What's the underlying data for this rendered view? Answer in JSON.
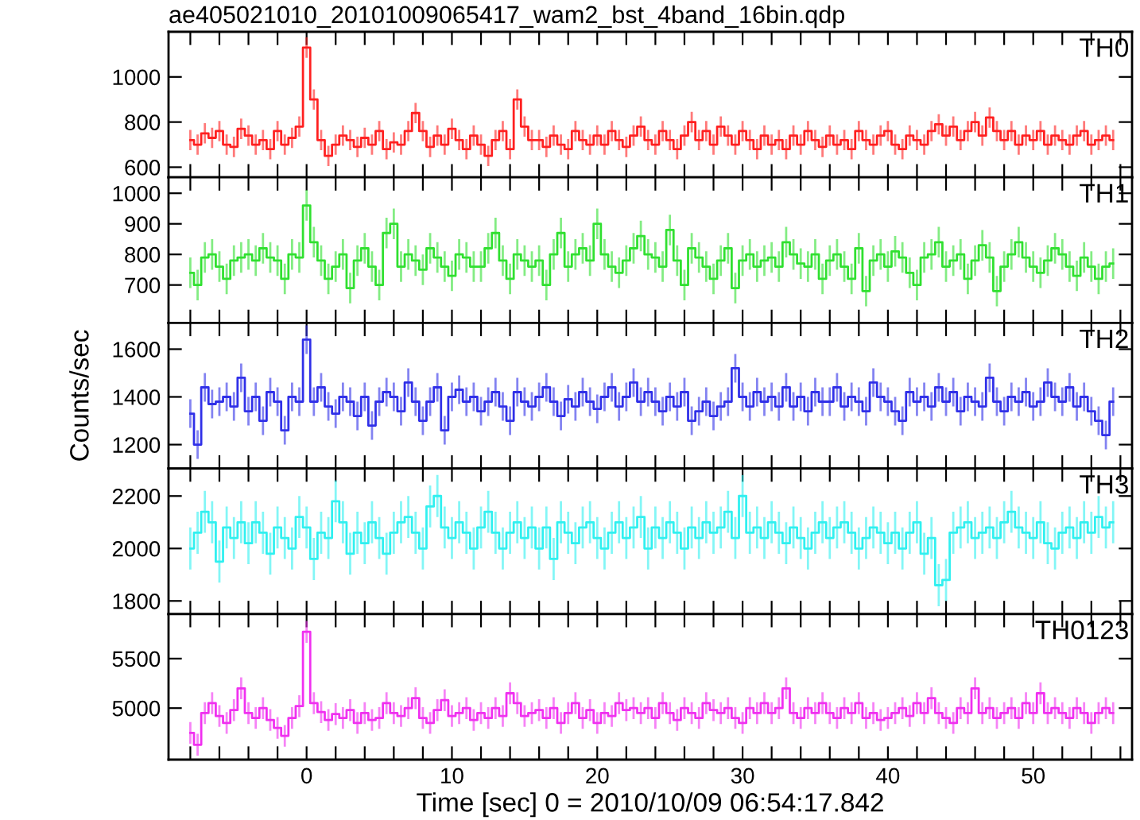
{
  "chart_data": [
    {
      "type": "step",
      "title": "ae405021010_20101009065417_wam2_bst_4band_16bin.qdp",
      "annotations": [
        "TH0"
      ],
      "tick_labels": "y",
      "xlim": [
        -9.5,
        56.8
      ],
      "ylim": [
        555,
        1200
      ],
      "yticks": [
        600,
        800,
        1000
      ],
      "x": [
        -8,
        -7.5,
        -7,
        -6.5,
        -6,
        -5.5,
        -5,
        -4.5,
        -4,
        -3.5,
        -3,
        -2.5,
        -2,
        -1.5,
        -1,
        -0.5,
        0,
        0.5,
        1,
        1.5,
        2,
        2.5,
        3,
        3.5,
        4,
        4.5,
        5,
        5.5,
        6,
        6.5,
        7,
        7.5,
        8,
        8.5,
        9,
        9.5,
        10,
        10.5,
        11,
        11.5,
        12,
        12.5,
        13,
        13.5,
        14,
        14.5,
        15,
        15.5,
        16,
        16.5,
        17,
        17.5,
        18,
        18.5,
        19,
        19.5,
        20,
        20.5,
        21,
        21.5,
        22,
        22.5,
        23,
        23.5,
        24,
        24.5,
        25,
        25.5,
        26,
        26.5,
        27,
        27.5,
        28,
        28.5,
        29,
        29.5,
        30,
        30.5,
        31,
        31.5,
        32,
        32.5,
        33,
        33.5,
        34,
        34.5,
        35,
        35.5,
        36,
        36.5,
        37,
        37.5,
        38,
        38.5,
        39,
        39.5,
        40,
        40.5,
        41,
        41.5,
        42,
        42.5,
        43,
        43.5,
        44,
        44.5,
        45,
        45.5,
        46,
        46.5,
        47,
        47.5,
        48,
        48.5,
        49,
        49.5,
        50,
        50.5,
        51,
        51.5,
        52,
        52.5,
        53,
        53.5,
        54,
        54.5,
        55,
        55.5
      ],
      "series": [
        {
          "color": "#ff2020",
          "values": [
            720,
            700,
            750,
            730,
            760,
            700,
            690,
            770,
            740,
            700,
            720,
            680,
            760,
            700,
            730,
            780,
            1130,
            900,
            720,
            650,
            700,
            740,
            720,
            690,
            730,
            700,
            760,
            680,
            710,
            700,
            760,
            840,
            760,
            690,
            740,
            700,
            770,
            720,
            680,
            740,
            700,
            650,
            720,
            760,
            680,
            900,
            780,
            720,
            720,
            690,
            740,
            700,
            680,
            760,
            720,
            700,
            740,
            700,
            760,
            720,
            690,
            740,
            780,
            720,
            700,
            760,
            720,
            680,
            740,
            800,
            720,
            760,
            700,
            780,
            740,
            700,
            760,
            720,
            680,
            740,
            700,
            720,
            680,
            740,
            700,
            760,
            720,
            690,
            740,
            700,
            720,
            680,
            760,
            720,
            700,
            740,
            760,
            700,
            680,
            740,
            720,
            700,
            760,
            790,
            740,
            780,
            720,
            760,
            800,
            740,
            820,
            760,
            720,
            760,
            700,
            740,
            720,
            760,
            700,
            740,
            720,
            700,
            740,
            760,
            700,
            720,
            740,
            720
          ],
          "errors": [
            45,
            45,
            45,
            45,
            45,
            45,
            45,
            45,
            45,
            45,
            45,
            45,
            45,
            45,
            45,
            45,
            45,
            45,
            45,
            45,
            45,
            45,
            45,
            45,
            45,
            45,
            45,
            45,
            45,
            45,
            45,
            45,
            45,
            45,
            45,
            45,
            45,
            45,
            45,
            45,
            45,
            45,
            45,
            45,
            45,
            45,
            45,
            45,
            45,
            45,
            45,
            45,
            45,
            45,
            45,
            45,
            45,
            45,
            45,
            45,
            45,
            45,
            45,
            45,
            45,
            45,
            45,
            45,
            45,
            45,
            45,
            45,
            45,
            45,
            45,
            45,
            45,
            45,
            45,
            45,
            45,
            45,
            45,
            45,
            45,
            45,
            45,
            45,
            45,
            45,
            45,
            45,
            45,
            45,
            45,
            45,
            45,
            45,
            45,
            45,
            45,
            45,
            45,
            45,
            45,
            45,
            45,
            45,
            45,
            45,
            45,
            45,
            45,
            45,
            45,
            45,
            45,
            45,
            45,
            45,
            45,
            45,
            45,
            45,
            45,
            45,
            45,
            45
          ]
        }
      ]
    },
    {
      "type": "step",
      "annotations": [
        "TH1"
      ],
      "tick_labels": "y",
      "xlim": [
        -9.5,
        56.8
      ],
      "ylim": [
        576,
        1052
      ],
      "yticks": [
        700,
        800,
        900,
        1000
      ],
      "x": [
        -8,
        -7.5,
        -7,
        -6.5,
        -6,
        -5.5,
        -5,
        -4.5,
        -4,
        -3.5,
        -3,
        -2.5,
        -2,
        -1.5,
        -1,
        -0.5,
        0,
        0.5,
        1,
        1.5,
        2,
        2.5,
        3,
        3.5,
        4,
        4.5,
        5,
        5.5,
        6,
        6.5,
        7,
        7.5,
        8,
        8.5,
        9,
        9.5,
        10,
        10.5,
        11,
        11.5,
        12,
        12.5,
        13,
        13.5,
        14,
        14.5,
        15,
        15.5,
        16,
        16.5,
        17,
        17.5,
        18,
        18.5,
        19,
        19.5,
        20,
        20.5,
        21,
        21.5,
        22,
        22.5,
        23,
        23.5,
        24,
        24.5,
        25,
        25.5,
        26,
        26.5,
        27,
        27.5,
        28,
        28.5,
        29,
        29.5,
        30,
        30.5,
        31,
        31.5,
        32,
        32.5,
        33,
        33.5,
        34,
        34.5,
        35,
        35.5,
        36,
        36.5,
        37,
        37.5,
        38,
        38.5,
        39,
        39.5,
        40,
        40.5,
        41,
        41.5,
        42,
        42.5,
        43,
        43.5,
        44,
        44.5,
        45,
        45.5,
        46,
        46.5,
        47,
        47.5,
        48,
        48.5,
        49,
        49.5,
        50,
        50.5,
        51,
        51.5,
        52,
        52.5,
        53,
        53.5,
        54,
        54.5,
        55,
        55.5
      ],
      "series": [
        {
          "color": "#30e030",
          "values": [
            740,
            700,
            790,
            800,
            760,
            720,
            780,
            790,
            800,
            780,
            820,
            790,
            780,
            720,
            800,
            790,
            960,
            840,
            780,
            720,
            760,
            800,
            690,
            780,
            820,
            760,
            700,
            870,
            900,
            760,
            800,
            780,
            750,
            820,
            790,
            760,
            730,
            800,
            790,
            760,
            760,
            820,
            870,
            780,
            720,
            800,
            780,
            760,
            780,
            700,
            800,
            870,
            760,
            800,
            820,
            780,
            900,
            800,
            760,
            740,
            780,
            820,
            860,
            800,
            790,
            760,
            880,
            780,
            700,
            820,
            790,
            760,
            720,
            780,
            820,
            690,
            780,
            800,
            760,
            780,
            790,
            760,
            840,
            800,
            770,
            760,
            800,
            720,
            780,
            800,
            760,
            720,
            820,
            680,
            780,
            800,
            760,
            810,
            790,
            740,
            700,
            790,
            800,
            840,
            760,
            780,
            800,
            720,
            780,
            830,
            790,
            680,
            760,
            800,
            840,
            790,
            760,
            740,
            780,
            820,
            800,
            760,
            730,
            790,
            760,
            720,
            760,
            770
          ],
          "errors": [
            50,
            50,
            50,
            50,
            50,
            50,
            50,
            50,
            50,
            50,
            50,
            50,
            50,
            50,
            50,
            50,
            50,
            50,
            50,
            50,
            50,
            50,
            50,
            50,
            50,
            50,
            50,
            50,
            50,
            50,
            50,
            50,
            50,
            50,
            50,
            50,
            50,
            50,
            50,
            50,
            50,
            50,
            50,
            50,
            50,
            50,
            50,
            50,
            50,
            50,
            50,
            50,
            50,
            50,
            50,
            50,
            50,
            50,
            50,
            50,
            50,
            50,
            50,
            50,
            50,
            50,
            50,
            50,
            50,
            50,
            50,
            50,
            50,
            50,
            50,
            50,
            50,
            50,
            50,
            50,
            50,
            50,
            50,
            50,
            50,
            50,
            50,
            50,
            50,
            50,
            50,
            50,
            50,
            50,
            50,
            50,
            50,
            50,
            50,
            50,
            50,
            50,
            50,
            50,
            50,
            50,
            50,
            50,
            50,
            50,
            50,
            50,
            50,
            50,
            50,
            50,
            50,
            50,
            50,
            50,
            50,
            50,
            50,
            50,
            50,
            50,
            50,
            50
          ]
        }
      ]
    },
    {
      "type": "step",
      "annotations": [
        "TH2"
      ],
      "ylabel": "Counts/sec",
      "tick_labels": "y",
      "xlim": [
        -9.5,
        56.8
      ],
      "ylim": [
        1100,
        1710
      ],
      "yticks": [
        1200,
        1400,
        1600
      ],
      "x": [
        -8,
        -7.5,
        -7,
        -6.5,
        -6,
        -5.5,
        -5,
        -4.5,
        -4,
        -3.5,
        -3,
        -2.5,
        -2,
        -1.5,
        -1,
        -0.5,
        0,
        0.5,
        1,
        1.5,
        2,
        2.5,
        3,
        3.5,
        4,
        4.5,
        5,
        5.5,
        6,
        6.5,
        7,
        7.5,
        8,
        8.5,
        9,
        9.5,
        10,
        10.5,
        11,
        11.5,
        12,
        12.5,
        13,
        13.5,
        14,
        14.5,
        15,
        15.5,
        16,
        16.5,
        17,
        17.5,
        18,
        18.5,
        19,
        19.5,
        20,
        20.5,
        21,
        21.5,
        22,
        22.5,
        23,
        23.5,
        24,
        24.5,
        25,
        25.5,
        26,
        26.5,
        27,
        27.5,
        28,
        28.5,
        29,
        29.5,
        30,
        30.5,
        31,
        31.5,
        32,
        32.5,
        33,
        33.5,
        34,
        34.5,
        35,
        35.5,
        36,
        36.5,
        37,
        37.5,
        38,
        38.5,
        39,
        39.5,
        40,
        40.5,
        41,
        41.5,
        42,
        42.5,
        43,
        43.5,
        44,
        44.5,
        45,
        45.5,
        46,
        46.5,
        47,
        47.5,
        48,
        48.5,
        49,
        49.5,
        50,
        50.5,
        51,
        51.5,
        52,
        52.5,
        53,
        53.5,
        54,
        54.5,
        55,
        55.5
      ],
      "series": [
        {
          "color": "#3030e8",
          "values": [
            1330,
            1200,
            1440,
            1370,
            1380,
            1400,
            1360,
            1480,
            1340,
            1400,
            1300,
            1420,
            1380,
            1260,
            1400,
            1380,
            1640,
            1380,
            1440,
            1360,
            1330,
            1400,
            1380,
            1320,
            1400,
            1280,
            1380,
            1420,
            1400,
            1340,
            1460,
            1380,
            1300,
            1380,
            1440,
            1260,
            1400,
            1430,
            1380,
            1400,
            1340,
            1380,
            1420,
            1360,
            1300,
            1420,
            1380,
            1360,
            1400,
            1440,
            1380,
            1320,
            1390,
            1360,
            1420,
            1380,
            1350,
            1400,
            1440,
            1360,
            1400,
            1460,
            1380,
            1420,
            1380,
            1340,
            1400,
            1360,
            1420,
            1300,
            1340,
            1380,
            1320,
            1360,
            1380,
            1520,
            1400,
            1360,
            1420,
            1380,
            1400,
            1360,
            1440,
            1360,
            1400,
            1340,
            1420,
            1380,
            1380,
            1440,
            1360,
            1400,
            1380,
            1340,
            1460,
            1400,
            1380,
            1340,
            1300,
            1420,
            1380,
            1400,
            1360,
            1440,
            1380,
            1420,
            1340,
            1400,
            1380,
            1360,
            1480,
            1380,
            1340,
            1400,
            1380,
            1420,
            1360,
            1380,
            1460,
            1400,
            1380,
            1440,
            1360,
            1400,
            1340,
            1300,
            1240,
            1380
          ],
          "errors": [
            60,
            60,
            60,
            60,
            60,
            60,
            60,
            60,
            60,
            60,
            60,
            60,
            60,
            60,
            60,
            60,
            60,
            60,
            60,
            60,
            60,
            60,
            60,
            60,
            60,
            60,
            60,
            60,
            60,
            60,
            60,
            60,
            60,
            60,
            60,
            60,
            60,
            60,
            60,
            60,
            60,
            60,
            60,
            60,
            60,
            60,
            60,
            60,
            60,
            60,
            60,
            60,
            60,
            60,
            60,
            60,
            60,
            60,
            60,
            60,
            60,
            60,
            60,
            60,
            60,
            60,
            60,
            60,
            60,
            60,
            60,
            60,
            60,
            60,
            60,
            60,
            60,
            60,
            60,
            60,
            60,
            60,
            60,
            60,
            60,
            60,
            60,
            60,
            60,
            60,
            60,
            60,
            60,
            60,
            60,
            60,
            60,
            60,
            60,
            60,
            60,
            60,
            60,
            60,
            60,
            60,
            60,
            60,
            60,
            60,
            60,
            60,
            60,
            60,
            60,
            60,
            60,
            60,
            60,
            60,
            60,
            60,
            60,
            60,
            60,
            60,
            60,
            60
          ]
        }
      ]
    },
    {
      "type": "step",
      "annotations": [
        "TH3"
      ],
      "tick_labels": "y",
      "xlim": [
        -9.5,
        56.8
      ],
      "ylim": [
        1750,
        2305
      ],
      "yticks": [
        1800,
        2000,
        2200
      ],
      "x": [
        -8,
        -7.5,
        -7,
        -6.5,
        -6,
        -5.5,
        -5,
        -4.5,
        -4,
        -3.5,
        -3,
        -2.5,
        -2,
        -1.5,
        -1,
        -0.5,
        0,
        0.5,
        1,
        1.5,
        2,
        2.5,
        3,
        3.5,
        4,
        4.5,
        5,
        5.5,
        6,
        6.5,
        7,
        7.5,
        8,
        8.5,
        9,
        9.5,
        10,
        10.5,
        11,
        11.5,
        12,
        12.5,
        13,
        13.5,
        14,
        14.5,
        15,
        15.5,
        16,
        16.5,
        17,
        17.5,
        18,
        18.5,
        19,
        19.5,
        20,
        20.5,
        21,
        21.5,
        22,
        22.5,
        23,
        23.5,
        24,
        24.5,
        25,
        25.5,
        26,
        26.5,
        27,
        27.5,
        28,
        28.5,
        29,
        29.5,
        30,
        30.5,
        31,
        31.5,
        32,
        32.5,
        33,
        33.5,
        34,
        34.5,
        35,
        35.5,
        36,
        36.5,
        37,
        37.5,
        38,
        38.5,
        39,
        39.5,
        40,
        40.5,
        41,
        41.5,
        42,
        42.5,
        43,
        43.5,
        44,
        44.5,
        45,
        45.5,
        46,
        46.5,
        47,
        47.5,
        48,
        48.5,
        49,
        49.5,
        50,
        50.5,
        51,
        51.5,
        52,
        52.5,
        53,
        53.5,
        54,
        54.5,
        55,
        55.5
      ],
      "series": [
        {
          "color": "#30f0f0",
          "values": [
            2000,
            2060,
            2140,
            2100,
            1950,
            2080,
            2040,
            2100,
            2020,
            2100,
            2060,
            1980,
            2080,
            2040,
            2000,
            2120,
            2080,
            1960,
            2060,
            2040,
            2180,
            2100,
            1980,
            2060,
            2020,
            2100,
            2040,
            1980,
            2060,
            2100,
            2120,
            2060,
            2000,
            2160,
            2200,
            2080,
            2040,
            2100,
            2060,
            2000,
            2080,
            2140,
            2060,
            2000,
            2060,
            2100,
            2040,
            2080,
            2000,
            2080,
            1960,
            2100,
            2060,
            2020,
            2080,
            2100,
            2040,
            2000,
            2060,
            2100,
            2040,
            2080,
            2120,
            2000,
            2080,
            2040,
            2100,
            2060,
            2000,
            2080,
            2040,
            2100,
            2060,
            2080,
            2140,
            2040,
            2200,
            2060,
            2080,
            2040,
            2100,
            2060,
            2020,
            2080,
            2040,
            2000,
            2060,
            2100,
            2040,
            2080,
            2100,
            2060,
            2000,
            2040,
            2080,
            2060,
            2020,
            2060,
            2000,
            2060,
            2100,
            1980,
            2040,
            1860,
            1880,
            2060,
            2080,
            2100,
            2040,
            2060,
            2080,
            2040,
            2100,
            2140,
            2080,
            2060,
            2040,
            2100,
            2020,
            2000,
            2060,
            2080,
            2040,
            2100,
            2060,
            2120,
            2080,
            2100
          ],
          "errors": [
            80,
            80,
            80,
            80,
            80,
            80,
            80,
            80,
            80,
            80,
            80,
            80,
            80,
            80,
            80,
            80,
            80,
            80,
            80,
            80,
            80,
            80,
            80,
            80,
            80,
            80,
            80,
            80,
            80,
            80,
            80,
            80,
            80,
            80,
            80,
            80,
            80,
            80,
            80,
            80,
            80,
            80,
            80,
            80,
            80,
            80,
            80,
            80,
            80,
            80,
            80,
            80,
            80,
            80,
            80,
            80,
            80,
            80,
            80,
            80,
            80,
            80,
            80,
            80,
            80,
            80,
            80,
            80,
            80,
            80,
            80,
            80,
            80,
            80,
            80,
            80,
            80,
            80,
            80,
            80,
            80,
            80,
            80,
            80,
            80,
            80,
            80,
            80,
            80,
            80,
            80,
            80,
            80,
            80,
            80,
            80,
            80,
            80,
            80,
            80,
            80,
            80,
            80,
            80,
            80,
            80,
            80,
            80,
            80,
            80,
            80,
            80,
            80,
            80,
            80,
            80,
            80,
            80,
            80,
            80,
            80,
            80,
            80,
            80,
            80,
            80,
            80,
            80
          ]
        }
      ]
    },
    {
      "type": "step",
      "annotations": [
        "TH0123"
      ],
      "xlabel": "Time [sec] 0 = 2010/10/09 06:54:17.842",
      "xlim": [
        -9.5,
        56.8
      ],
      "ylim": [
        4480,
        5950
      ],
      "yticks": [
        5000,
        5500
      ],
      "xticks": [
        {
          "value": -8,
          "label": null
        },
        {
          "value": -6,
          "label": null
        },
        {
          "value": -4,
          "label": null
        },
        {
          "value": -2,
          "label": null
        },
        {
          "value": 0,
          "label": "0"
        },
        {
          "value": 2,
          "label": null
        },
        {
          "value": 4,
          "label": null
        },
        {
          "value": 6,
          "label": null
        },
        {
          "value": 8,
          "label": null
        },
        {
          "value": 10,
          "label": "10"
        },
        {
          "value": 12,
          "label": null
        },
        {
          "value": 14,
          "label": null
        },
        {
          "value": 16,
          "label": null
        },
        {
          "value": 18,
          "label": null
        },
        {
          "value": 20,
          "label": "20"
        },
        {
          "value": 22,
          "label": null
        },
        {
          "value": 24,
          "label": null
        },
        {
          "value": 26,
          "label": null
        },
        {
          "value": 28,
          "label": null
        },
        {
          "value": 30,
          "label": "30"
        },
        {
          "value": 32,
          "label": null
        },
        {
          "value": 34,
          "label": null
        },
        {
          "value": 36,
          "label": null
        },
        {
          "value": 38,
          "label": null
        },
        {
          "value": 40,
          "label": "40"
        },
        {
          "value": 42,
          "label": null
        },
        {
          "value": 44,
          "label": null
        },
        {
          "value": 46,
          "label": null
        },
        {
          "value": 48,
          "label": null
        },
        {
          "value": 50,
          "label": "50"
        },
        {
          "value": 52,
          "label": null
        },
        {
          "value": 54,
          "label": null
        },
        {
          "value": 56,
          "label": null
        }
      ],
      "x": [
        -8,
        -7.5,
        -7,
        -6.5,
        -6,
        -5.5,
        -5,
        -4.5,
        -4,
        -3.5,
        -3,
        -2.5,
        -2,
        -1.5,
        -1,
        -0.5,
        0,
        0.5,
        1,
        1.5,
        2,
        2.5,
        3,
        3.5,
        4,
        4.5,
        5,
        5.5,
        6,
        6.5,
        7,
        7.5,
        8,
        8.5,
        9,
        9.5,
        10,
        10.5,
        11,
        11.5,
        12,
        12.5,
        13,
        13.5,
        14,
        14.5,
        15,
        15.5,
        16,
        16.5,
        17,
        17.5,
        18,
        18.5,
        19,
        19.5,
        20,
        20.5,
        21,
        21.5,
        22,
        22.5,
        23,
        23.5,
        24,
        24.5,
        25,
        25.5,
        26,
        26.5,
        27,
        27.5,
        28,
        28.5,
        29,
        29.5,
        30,
        30.5,
        31,
        31.5,
        32,
        32.5,
        33,
        33.5,
        34,
        34.5,
        35,
        35.5,
        36,
        36.5,
        37,
        37.5,
        38,
        38.5,
        39,
        39.5,
        40,
        40.5,
        41,
        41.5,
        42,
        42.5,
        43,
        43.5,
        44,
        44.5,
        45,
        45.5,
        46,
        46.5,
        47,
        47.5,
        48,
        48.5,
        49,
        49.5,
        50,
        50.5,
        51,
        51.5,
        52,
        52.5,
        53,
        53.5,
        54,
        54.5,
        55,
        55.5
      ],
      "series": [
        {
          "color": "#f030f0",
          "values": [
            4750,
            4630,
            4950,
            5050,
            4920,
            4850,
            4980,
            5200,
            4950,
            4900,
            5000,
            4880,
            4800,
            4720,
            4900,
            5020,
            5770,
            5050,
            4960,
            4880,
            4940,
            4900,
            4980,
            4850,
            4950,
            4880,
            4900,
            5050,
            4950,
            4920,
            5000,
            5100,
            4900,
            4850,
            4980,
            5080,
            4920,
            4950,
            5000,
            4880,
            4950,
            4900,
            5000,
            4920,
            5150,
            5050,
            4920,
            4950,
            4980,
            4900,
            5000,
            4850,
            4950,
            5050,
            4900,
            4980,
            4850,
            4950,
            4920,
            5050,
            4980,
            5000,
            4950,
            5000,
            4900,
            5050,
            4950,
            4880,
            5000,
            4950,
            4900,
            5050,
            4980,
            4950,
            5000,
            4900,
            4850,
            5000,
            4950,
            5050,
            4950,
            5000,
            5200,
            4950,
            4900,
            5000,
            4950,
            5050,
            4950,
            4900,
            5000,
            4950,
            5050,
            4900,
            4950,
            4880,
            4900,
            4950,
            5000,
            4920,
            5050,
            4950,
            5100,
            4950,
            4900,
            4850,
            5000,
            4950,
            5200,
            4950,
            5000,
            4900,
            4950,
            5000,
            4900,
            5050,
            4950,
            5150,
            4950,
            5000,
            4950,
            4900,
            5000,
            4950,
            4850,
            4950,
            5000,
            4950
          ],
          "errors": [
            110,
            110,
            110,
            110,
            110,
            110,
            110,
            110,
            110,
            110,
            110,
            110,
            110,
            110,
            110,
            110,
            110,
            110,
            110,
            110,
            110,
            110,
            110,
            110,
            110,
            110,
            110,
            110,
            110,
            110,
            110,
            110,
            110,
            110,
            110,
            110,
            110,
            110,
            110,
            110,
            110,
            110,
            110,
            110,
            110,
            110,
            110,
            110,
            110,
            110,
            110,
            110,
            110,
            110,
            110,
            110,
            110,
            110,
            110,
            110,
            110,
            110,
            110,
            110,
            110,
            110,
            110,
            110,
            110,
            110,
            110,
            110,
            110,
            110,
            110,
            110,
            110,
            110,
            110,
            110,
            110,
            110,
            110,
            110,
            110,
            110,
            110,
            110,
            110,
            110,
            110,
            110,
            110,
            110,
            110,
            110,
            110,
            110,
            110,
            110,
            110,
            110,
            110,
            110,
            110,
            110,
            110,
            110,
            110,
            110,
            110,
            110,
            110,
            110,
            110,
            110,
            110,
            110,
            110,
            110,
            110,
            110,
            110,
            110,
            110,
            110,
            110,
            110
          ]
        }
      ]
    }
  ]
}
